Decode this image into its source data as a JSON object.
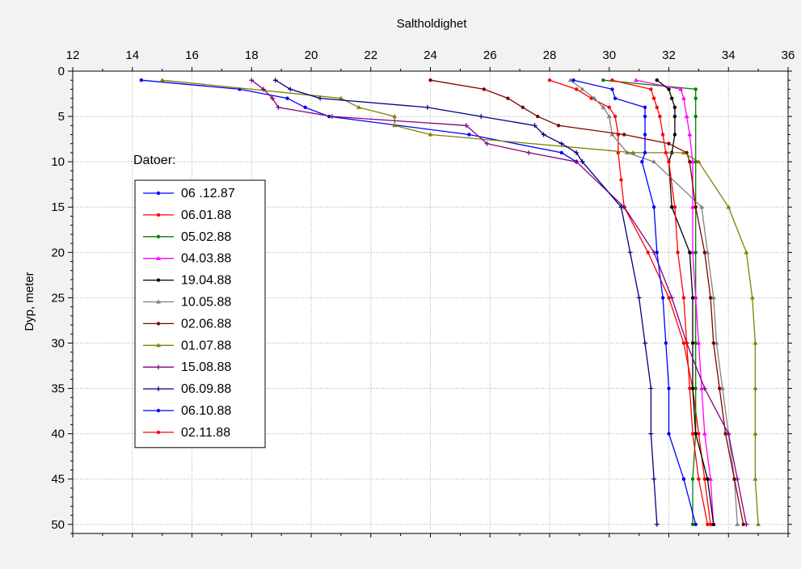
{
  "chart_data": {
    "type": "line",
    "xlabel": "Saltholdighet",
    "ylabel": "Dyp, meter",
    "xlim": [
      12,
      36
    ],
    "ylim": [
      0,
      51
    ],
    "y_inverted": true,
    "x_axis_position": "top",
    "x_ticks": [
      12,
      14,
      16,
      18,
      20,
      22,
      24,
      26,
      28,
      30,
      32,
      34,
      36
    ],
    "y_ticks": [
      0,
      5,
      10,
      15,
      20,
      25,
      30,
      35,
      40,
      45,
      50
    ],
    "grid": true,
    "legend_title": "Datoer:",
    "legend_position": "left",
    "series": [
      {
        "name": "06 .12.87",
        "color": "#0000ff",
        "marker": "circle",
        "points": [
          [
            14.3,
            1
          ],
          [
            17.6,
            2
          ],
          [
            19.2,
            3
          ],
          [
            19.8,
            4
          ],
          [
            20.6,
            5
          ],
          [
            25.3,
            7
          ],
          [
            28.4,
            9
          ],
          [
            28.9,
            10
          ]
        ]
      },
      {
        "name": "06.01.88",
        "color": "#ff0000",
        "marker": "circle",
        "points": [
          [
            28.0,
            1
          ],
          [
            28.9,
            2
          ],
          [
            29.4,
            3
          ],
          [
            30.0,
            4
          ],
          [
            30.2,
            5
          ],
          [
            30.3,
            7
          ],
          [
            30.3,
            9
          ],
          [
            30.4,
            12
          ],
          [
            30.5,
            15
          ],
          [
            31.3,
            20
          ],
          [
            32.0,
            25
          ],
          [
            32.5,
            30
          ],
          [
            32.8,
            35
          ],
          [
            33.0,
            40
          ],
          [
            33.2,
            45
          ],
          [
            33.4,
            50
          ]
        ]
      },
      {
        "name": "05.02.88",
        "color": "#008000",
        "marker": "circle",
        "points": [
          [
            29.8,
            1
          ],
          [
            32.9,
            2
          ],
          [
            32.9,
            3
          ],
          [
            32.9,
            5
          ],
          [
            32.9,
            10
          ],
          [
            32.9,
            15
          ],
          [
            32.9,
            20
          ],
          [
            32.9,
            25
          ],
          [
            32.9,
            30
          ],
          [
            32.9,
            35
          ],
          [
            32.9,
            40
          ],
          [
            32.8,
            45
          ],
          [
            32.8,
            50
          ]
        ]
      },
      {
        "name": "04.03.88",
        "color": "#ff00ff",
        "marker": "triangle",
        "points": [
          [
            30.9,
            1
          ],
          [
            32.4,
            2
          ],
          [
            32.5,
            3
          ],
          [
            32.6,
            5
          ],
          [
            32.7,
            7
          ],
          [
            32.8,
            10
          ],
          [
            32.8,
            15
          ],
          [
            32.8,
            20
          ],
          [
            32.9,
            25
          ],
          [
            33.0,
            30
          ],
          [
            33.1,
            35
          ],
          [
            33.2,
            40
          ],
          [
            33.4,
            45
          ],
          [
            33.5,
            50
          ]
        ]
      },
      {
        "name": "19.04.88",
        "color": "#000000",
        "marker": "circle",
        "points": [
          [
            31.6,
            1
          ],
          [
            32.0,
            2
          ],
          [
            32.1,
            3
          ],
          [
            32.2,
            4
          ],
          [
            32.2,
            5
          ],
          [
            32.2,
            7
          ],
          [
            32.1,
            9
          ],
          [
            32.0,
            10
          ],
          [
            32.1,
            15
          ],
          [
            32.7,
            20
          ],
          [
            32.8,
            25
          ],
          [
            32.8,
            30
          ],
          [
            32.8,
            35
          ],
          [
            32.9,
            40
          ],
          [
            33.3,
            45
          ],
          [
            33.5,
            50
          ]
        ]
      },
      {
        "name": "10.05.88",
        "color": "#808080",
        "marker": "triangle",
        "points": [
          [
            28.7,
            1
          ],
          [
            29.1,
            2
          ],
          [
            29.5,
            3
          ],
          [
            29.8,
            4
          ],
          [
            30.0,
            5
          ],
          [
            30.1,
            7
          ],
          [
            30.6,
            9
          ],
          [
            31.5,
            10
          ],
          [
            33.1,
            15
          ],
          [
            33.3,
            20
          ],
          [
            33.5,
            25
          ],
          [
            33.6,
            30
          ],
          [
            33.8,
            35
          ],
          [
            34.0,
            40
          ],
          [
            34.2,
            45
          ],
          [
            34.3,
            50
          ]
        ]
      },
      {
        "name": "02.06.88",
        "color": "#800000",
        "marker": "circle",
        "points": [
          [
            24.0,
            1
          ],
          [
            25.8,
            2
          ],
          [
            26.6,
            3
          ],
          [
            27.1,
            4
          ],
          [
            27.6,
            5
          ],
          [
            28.3,
            6
          ],
          [
            30.5,
            7
          ],
          [
            32.0,
            8
          ],
          [
            32.6,
            9
          ],
          [
            32.7,
            10
          ],
          [
            32.9,
            15
          ],
          [
            33.2,
            20
          ],
          [
            33.4,
            25
          ],
          [
            33.5,
            30
          ],
          [
            33.7,
            35
          ],
          [
            33.9,
            40
          ],
          [
            34.2,
            45
          ],
          [
            34.5,
            50
          ]
        ]
      },
      {
        "name": "01.07.88",
        "color": "#808000",
        "marker": "triangle",
        "points": [
          [
            15.0,
            1
          ],
          [
            21.0,
            3
          ],
          [
            21.6,
            4
          ],
          [
            22.8,
            5
          ],
          [
            22.8,
            6
          ],
          [
            24.0,
            7
          ],
          [
            30.8,
            9
          ],
          [
            32.5,
            9
          ],
          [
            33.0,
            10
          ],
          [
            34.0,
            15
          ],
          [
            34.6,
            20
          ],
          [
            34.8,
            25
          ],
          [
            34.9,
            30
          ],
          [
            34.9,
            35
          ],
          [
            34.9,
            40
          ],
          [
            34.9,
            45
          ],
          [
            35.0,
            50
          ]
        ]
      },
      {
        "name": "15.08.88",
        "color": "#800080",
        "marker": "plus",
        "points": [
          [
            18.0,
            1
          ],
          [
            18.4,
            2
          ],
          [
            18.7,
            3
          ],
          [
            18.9,
            4
          ],
          [
            20.7,
            5
          ],
          [
            25.2,
            6
          ],
          [
            25.9,
            8
          ],
          [
            27.3,
            9
          ],
          [
            28.9,
            10
          ],
          [
            30.5,
            15
          ],
          [
            31.5,
            20
          ],
          [
            32.1,
            25
          ],
          [
            32.6,
            30
          ],
          [
            33.2,
            35
          ],
          [
            34.0,
            40
          ],
          [
            34.3,
            45
          ],
          [
            34.6,
            50
          ]
        ]
      },
      {
        "name": "06.09.88",
        "color": "#000080",
        "marker": "plus",
        "points": [
          [
            18.8,
            1
          ],
          [
            19.3,
            2
          ],
          [
            20.3,
            3
          ],
          [
            23.9,
            4
          ],
          [
            25.7,
            5
          ],
          [
            27.5,
            6
          ],
          [
            27.8,
            7
          ],
          [
            28.4,
            8
          ],
          [
            28.9,
            9
          ],
          [
            29.1,
            10
          ],
          [
            30.4,
            15
          ],
          [
            30.7,
            20
          ],
          [
            31.0,
            25
          ],
          [
            31.2,
            30
          ],
          [
            31.4,
            35
          ],
          [
            31.4,
            40
          ],
          [
            31.5,
            45
          ],
          [
            31.6,
            50
          ]
        ]
      },
      {
        "name": "06.10.88",
        "color": "#0000ff",
        "marker": "circle",
        "points": [
          [
            28.8,
            1
          ],
          [
            30.1,
            2
          ],
          [
            30.2,
            3
          ],
          [
            31.2,
            4
          ],
          [
            31.2,
            5
          ],
          [
            31.2,
            7
          ],
          [
            31.2,
            9
          ],
          [
            31.1,
            10
          ],
          [
            31.5,
            15
          ],
          [
            31.6,
            20
          ],
          [
            31.8,
            25
          ],
          [
            31.9,
            30
          ],
          [
            32.0,
            35
          ],
          [
            32.0,
            40
          ],
          [
            32.5,
            45
          ],
          [
            32.9,
            50
          ]
        ]
      },
      {
        "name": "02.11.88",
        "color": "#ff0000",
        "marker": "circle",
        "points": [
          [
            30.1,
            1
          ],
          [
            31.4,
            2
          ],
          [
            31.5,
            3
          ],
          [
            31.6,
            4
          ],
          [
            31.7,
            5
          ],
          [
            31.8,
            7
          ],
          [
            31.9,
            9
          ],
          [
            32.0,
            10
          ],
          [
            32.2,
            15
          ],
          [
            32.3,
            20
          ],
          [
            32.5,
            25
          ],
          [
            32.6,
            30
          ],
          [
            32.7,
            35
          ],
          [
            32.8,
            40
          ],
          [
            33.0,
            45
          ],
          [
            33.3,
            50
          ]
        ]
      }
    ]
  }
}
